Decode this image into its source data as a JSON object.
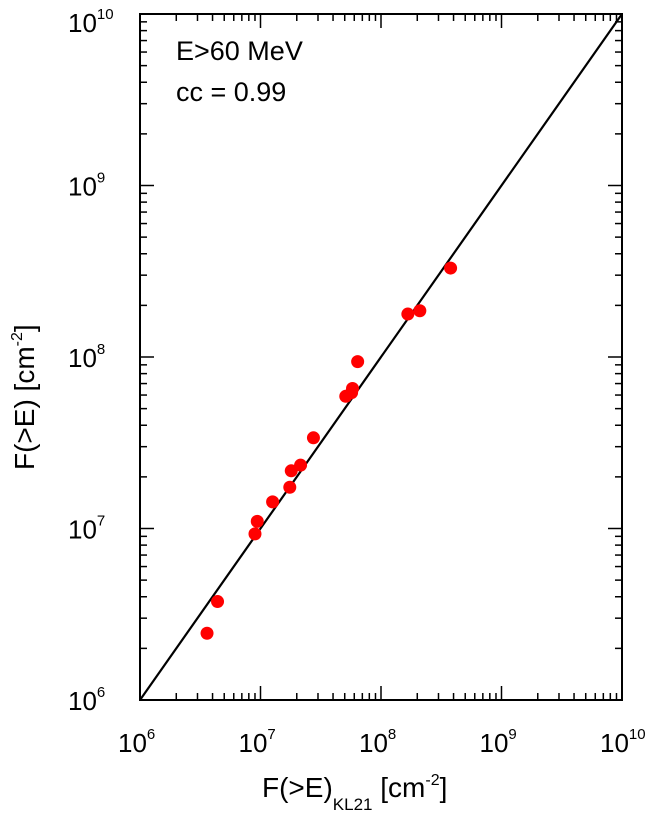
{
  "chart_data": {
    "type": "scatter",
    "x_scale": "log",
    "y_scale": "log",
    "xlim": [
      1000000,
      10000000000
    ],
    "ylim": [
      1000000,
      10000000000
    ],
    "x_ticks": [
      {
        "base": "10",
        "exp": "6"
      },
      {
        "base": "10",
        "exp": "7"
      },
      {
        "base": "10",
        "exp": "8"
      },
      {
        "base": "10",
        "exp": "9"
      },
      {
        "base": "10",
        "exp": "10"
      }
    ],
    "y_ticks": [
      {
        "base": "10",
        "exp": "6"
      },
      {
        "base": "10",
        "exp": "7"
      },
      {
        "base": "10",
        "exp": "8"
      },
      {
        "base": "10",
        "exp": "9"
      },
      {
        "base": "10",
        "exp": "10"
      }
    ],
    "xlabel": {
      "main": "F(>E)",
      "sub": "KL21",
      "unit_pre": " [cm",
      "unit_sup": "-2",
      "unit_post": "]"
    },
    "ylabel": {
      "main": "F(>E) [cm",
      "sup": "-2",
      "post": "]"
    },
    "annotations": [
      "E>60 MeV",
      "cc = 0.99"
    ],
    "point_color": "#ff0000",
    "line": {
      "x": [
        1000000,
        10000000000
      ],
      "y": [
        1000000,
        10000000000
      ],
      "color": "#000000"
    },
    "points": [
      {
        "x": 3600000,
        "y": 2450000
      },
      {
        "x": 4400000,
        "y": 3750000
      },
      {
        "x": 9000000,
        "y": 9300000
      },
      {
        "x": 9400000,
        "y": 11000000
      },
      {
        "x": 12600000,
        "y": 14300000
      },
      {
        "x": 17500000,
        "y": 17400000
      },
      {
        "x": 18000000,
        "y": 21700000
      },
      {
        "x": 21500000,
        "y": 23400000
      },
      {
        "x": 27500000,
        "y": 33800000
      },
      {
        "x": 51000000,
        "y": 59000000
      },
      {
        "x": 57000000,
        "y": 62000000
      },
      {
        "x": 58000000,
        "y": 65500000
      },
      {
        "x": 64000000,
        "y": 94000000
      },
      {
        "x": 167000000,
        "y": 178000000
      },
      {
        "x": 210000000,
        "y": 186000000
      },
      {
        "x": 378000000,
        "y": 330000000
      }
    ]
  }
}
